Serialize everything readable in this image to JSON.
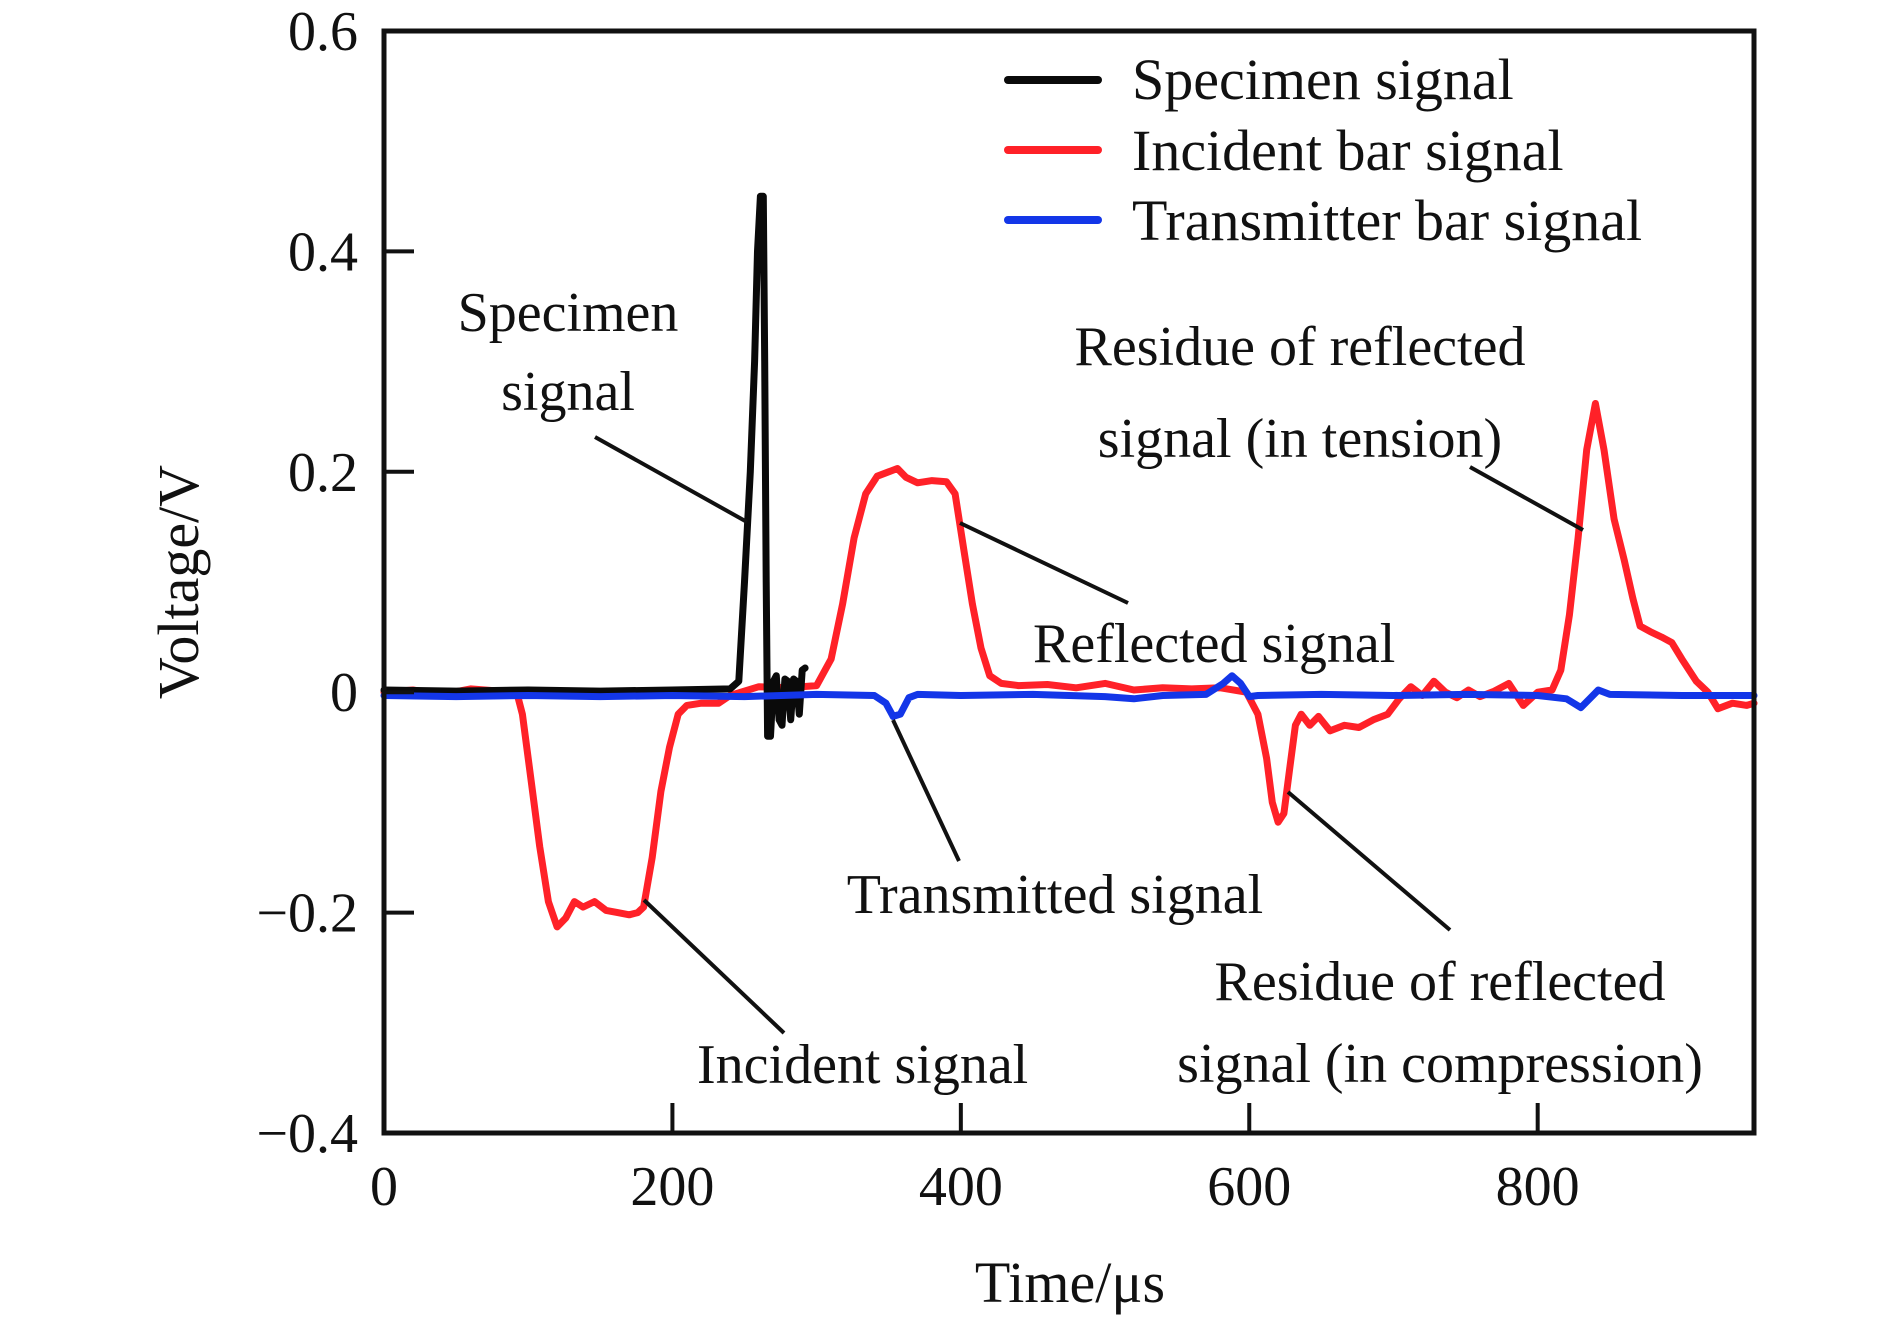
{
  "chart_data": {
    "type": "line",
    "title": "",
    "xlabel": "Time/μs",
    "ylabel": "Voltage/V",
    "xlim": [
      0,
      950
    ],
    "ylim": [
      -0.4,
      0.6
    ],
    "grid": false,
    "legend_position": "top-right",
    "x_ticks": [
      0,
      200,
      400,
      600,
      800
    ],
    "x_tick_labels": [
      "0",
      "200",
      "400",
      "600",
      "800"
    ],
    "y_ticks": [
      -0.4,
      -0.2,
      0,
      0.2,
      0.4,
      0.6
    ],
    "y_tick_labels": [
      "−0.4",
      "−0.2",
      "0",
      "0.2",
      "0.4",
      "0.6"
    ],
    "series": [
      {
        "name": "Specimen signal",
        "color": "#0a0a0a",
        "points": [
          [
            0,
            0.002
          ],
          [
            50,
            0.001
          ],
          [
            100,
            0.002
          ],
          [
            150,
            0.001
          ],
          [
            200,
            0.002
          ],
          [
            240,
            0.003
          ],
          [
            246,
            0.01
          ],
          [
            250,
            0.1
          ],
          [
            254,
            0.2
          ],
          [
            257,
            0.3
          ],
          [
            259,
            0.4
          ],
          [
            261,
            0.45
          ],
          [
            263,
            0.45
          ],
          [
            264,
            0.3
          ],
          [
            265,
            0.1
          ],
          [
            266,
            -0.04
          ],
          [
            268,
            -0.04
          ],
          [
            270,
            0.01
          ],
          [
            272,
            0.015
          ],
          [
            274,
            -0.025
          ],
          [
            276,
            -0.03
          ],
          [
            278,
            0.012
          ],
          [
            280,
            0.01
          ],
          [
            282,
            -0.025
          ],
          [
            284,
            0.012
          ],
          [
            286,
            0.01
          ],
          [
            288,
            -0.02
          ],
          [
            290,
            0.02
          ],
          [
            292,
            0.022
          ]
        ]
      },
      {
        "name": "Incident bar signal",
        "color": "#ff2128",
        "points": [
          [
            0,
            0.0
          ],
          [
            20,
            0.002
          ],
          [
            40,
            -0.002
          ],
          [
            60,
            0.003
          ],
          [
            80,
            0.001
          ],
          [
            92,
            0.0
          ],
          [
            96,
            -0.02
          ],
          [
            102,
            -0.08
          ],
          [
            108,
            -0.14
          ],
          [
            114,
            -0.19
          ],
          [
            120,
            -0.213
          ],
          [
            126,
            -0.205
          ],
          [
            132,
            -0.19
          ],
          [
            138,
            -0.195
          ],
          [
            146,
            -0.19
          ],
          [
            154,
            -0.198
          ],
          [
            162,
            -0.2
          ],
          [
            170,
            -0.202
          ],
          [
            176,
            -0.2
          ],
          [
            180,
            -0.195
          ],
          [
            186,
            -0.15
          ],
          [
            192,
            -0.09
          ],
          [
            198,
            -0.05
          ],
          [
            204,
            -0.02
          ],
          [
            210,
            -0.012
          ],
          [
            220,
            -0.01
          ],
          [
            232,
            -0.01
          ],
          [
            240,
            -0.003
          ],
          [
            260,
            0.005
          ],
          [
            280,
            0.004
          ],
          [
            300,
            0.006
          ],
          [
            310,
            0.03
          ],
          [
            318,
            0.08
          ],
          [
            326,
            0.14
          ],
          [
            334,
            0.18
          ],
          [
            342,
            0.196
          ],
          [
            350,
            0.2
          ],
          [
            356,
            0.203
          ],
          [
            362,
            0.195
          ],
          [
            370,
            0.19
          ],
          [
            380,
            0.192
          ],
          [
            390,
            0.191
          ],
          [
            396,
            0.18
          ],
          [
            402,
            0.13
          ],
          [
            408,
            0.08
          ],
          [
            414,
            0.04
          ],
          [
            420,
            0.015
          ],
          [
            428,
            0.008
          ],
          [
            440,
            0.006
          ],
          [
            460,
            0.007
          ],
          [
            480,
            0.004
          ],
          [
            500,
            0.008
          ],
          [
            520,
            0.002
          ],
          [
            540,
            0.004
          ],
          [
            560,
            0.003
          ],
          [
            580,
            0.004
          ],
          [
            598,
            0.0
          ],
          [
            606,
            -0.02
          ],
          [
            612,
            -0.06
          ],
          [
            616,
            -0.1
          ],
          [
            620,
            -0.118
          ],
          [
            624,
            -0.11
          ],
          [
            628,
            -0.07
          ],
          [
            632,
            -0.03
          ],
          [
            636,
            -0.02
          ],
          [
            642,
            -0.03
          ],
          [
            648,
            -0.022
          ],
          [
            656,
            -0.035
          ],
          [
            666,
            -0.03
          ],
          [
            676,
            -0.032
          ],
          [
            686,
            -0.025
          ],
          [
            696,
            -0.02
          ],
          [
            704,
            -0.006
          ],
          [
            712,
            0.005
          ],
          [
            720,
            -0.003
          ],
          [
            728,
            0.01
          ],
          [
            736,
            0.0
          ],
          [
            744,
            -0.005
          ],
          [
            752,
            0.002
          ],
          [
            760,
            -0.004
          ],
          [
            770,
            0.001
          ],
          [
            780,
            0.008
          ],
          [
            790,
            -0.012
          ],
          [
            800,
            0.0
          ],
          [
            810,
            0.002
          ],
          [
            816,
            0.02
          ],
          [
            822,
            0.07
          ],
          [
            828,
            0.14
          ],
          [
            834,
            0.22
          ],
          [
            840,
            0.262
          ],
          [
            846,
            0.22
          ],
          [
            853,
            0.157
          ],
          [
            860,
            0.12
          ],
          [
            866,
            0.085
          ],
          [
            871,
            0.06
          ],
          [
            878,
            0.055
          ],
          [
            886,
            0.05
          ],
          [
            893,
            0.045
          ],
          [
            900,
            0.03
          ],
          [
            910,
            0.01
          ],
          [
            918,
            0.0
          ],
          [
            925,
            -0.015
          ],
          [
            935,
            -0.01
          ],
          [
            945,
            -0.012
          ],
          [
            950,
            -0.01
          ]
        ]
      },
      {
        "name": "Transmitter bar signal",
        "color": "#1336e8",
        "points": [
          [
            0,
            -0.003
          ],
          [
            50,
            -0.004
          ],
          [
            100,
            -0.003
          ],
          [
            150,
            -0.004
          ],
          [
            200,
            -0.003
          ],
          [
            250,
            -0.004
          ],
          [
            300,
            -0.002
          ],
          [
            340,
            -0.003
          ],
          [
            348,
            -0.01
          ],
          [
            353,
            -0.022
          ],
          [
            358,
            -0.02
          ],
          [
            364,
            -0.005
          ],
          [
            370,
            -0.002
          ],
          [
            400,
            -0.003
          ],
          [
            450,
            -0.002
          ],
          [
            500,
            -0.004
          ],
          [
            520,
            -0.006
          ],
          [
            540,
            -0.003
          ],
          [
            570,
            -0.002
          ],
          [
            582,
            0.008
          ],
          [
            588,
            0.015
          ],
          [
            594,
            0.008
          ],
          [
            600,
            -0.004
          ],
          [
            606,
            -0.003
          ],
          [
            650,
            -0.002
          ],
          [
            700,
            -0.003
          ],
          [
            750,
            -0.002
          ],
          [
            800,
            -0.003
          ],
          [
            820,
            -0.006
          ],
          [
            830,
            -0.014
          ],
          [
            836,
            -0.006
          ],
          [
            842,
            0.002
          ],
          [
            850,
            -0.002
          ],
          [
            900,
            -0.003
          ],
          [
            950,
            -0.003
          ]
        ]
      }
    ],
    "annotations": [
      {
        "id": "specimen",
        "lines": [
          "Specimen",
          "signal"
        ]
      },
      {
        "id": "reflected",
        "lines": [
          "Reflected signal"
        ]
      },
      {
        "id": "incident",
        "lines": [
          "Incident signal"
        ]
      },
      {
        "id": "transmitted",
        "lines": [
          "Transmitted signal"
        ]
      },
      {
        "id": "tension",
        "lines": [
          "Residue of reflected",
          "signal (in tension)"
        ]
      },
      {
        "id": "compression",
        "lines": [
          "Residue of reflected",
          "signal (in compression)"
        ]
      }
    ]
  }
}
